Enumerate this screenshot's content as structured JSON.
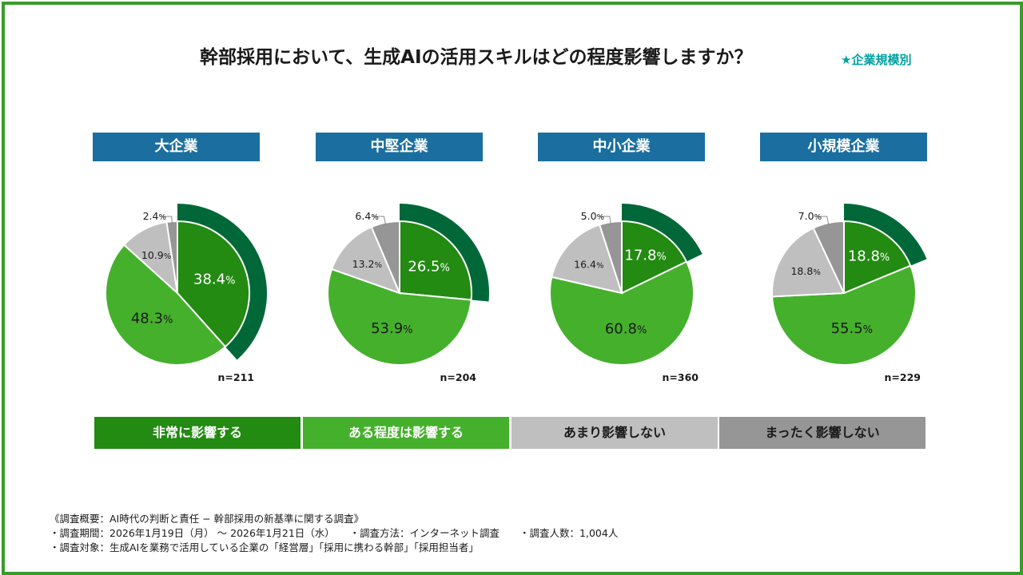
{
  "title": "幹部採用において、生成AIの活用スキルはどの程度影響しますか？",
  "subtitle": "★企業規模別",
  "colors": {
    "frame": "#3a9b2a",
    "header_bg": "#1a6fa0",
    "subtitle": "#00a0a0",
    "very": "#238a12",
    "very_outer": "#006838",
    "somewhat": "#45b02c",
    "not_much": "#bfbfbf",
    "not_at_all": "#969696"
  },
  "legend": [
    {
      "label": "非常に影響する",
      "color": "#238a12",
      "text_color": "#ffffff"
    },
    {
      "label": "ある程度は影響する",
      "color": "#45b02c",
      "text_color": "#ffffff"
    },
    {
      "label": "あまり影響しない",
      "color": "#bfbfbf",
      "text_color": "#1a1a1a"
    },
    {
      "label": "まったく影響しない",
      "color": "#969696",
      "text_color": "#1a1a1a"
    }
  ],
  "chart_data": [
    {
      "type": "pie",
      "title": "大企業",
      "n_label": "n=211",
      "categories": [
        "非常に影響する",
        "ある程度は影響する",
        "あまり影響しない",
        "まったく影響しない"
      ],
      "values": [
        38.4,
        48.3,
        10.9,
        2.4
      ],
      "highlight": "非常に影響する"
    },
    {
      "type": "pie",
      "title": "中堅企業",
      "n_label": "n=204",
      "categories": [
        "非常に影響する",
        "ある程度は影響する",
        "あまり影響しない",
        "まったく影響しない"
      ],
      "values": [
        26.5,
        53.9,
        13.2,
        6.4
      ],
      "highlight": "非常に影響する"
    },
    {
      "type": "pie",
      "title": "中小企業",
      "n_label": "n=360",
      "categories": [
        "非常に影響する",
        "ある程度は影響する",
        "あまり影響しない",
        "まったく影響しない"
      ],
      "values": [
        17.8,
        60.8,
        16.4,
        5.0
      ],
      "highlight": "非常に影響する"
    },
    {
      "type": "pie",
      "title": "小規模企業",
      "n_label": "n=229",
      "categories": [
        "非常に影響する",
        "ある程度は影響する",
        "あまり影響しない",
        "まったく影響しない"
      ],
      "values": [
        18.8,
        55.5,
        18.8,
        7.0
      ],
      "highlight": "非常に影響する"
    }
  ],
  "notes": {
    "line1": "《調査概要：AI時代の判断と責任 − 幹部採用の新基準に関する調査》",
    "line2": "・調査期間：2026年1月19日（月） 〜 2026年1月21日（水）　　・調査方法：インターネット調査　　・調査人数：1,004人",
    "line3": "・調査対象：生成AIを業務で活用している企業の「経営層」「採用に携わる幹部」「採用担当者」"
  }
}
